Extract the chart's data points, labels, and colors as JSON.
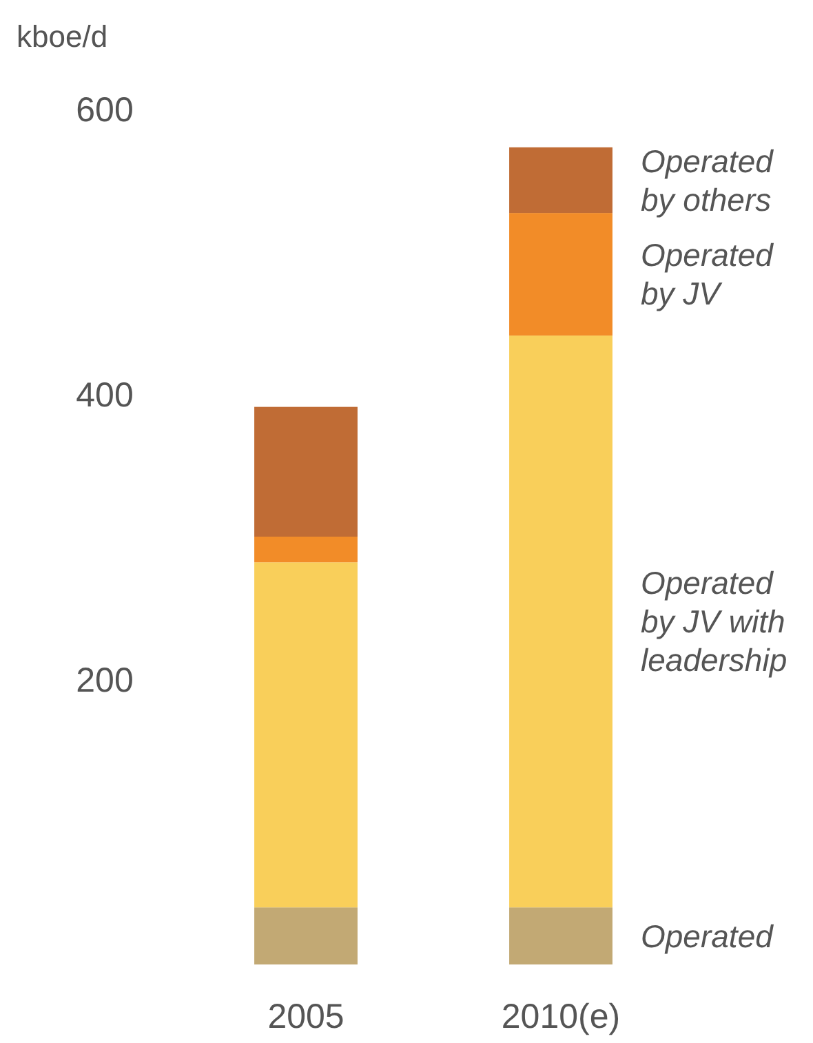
{
  "chart_data": {
    "type": "bar",
    "stacked": true,
    "ylabel": "kboe/d",
    "categories": [
      "2005",
      "2010(e)"
    ],
    "ylim": [
      0,
      600
    ],
    "yticks": [
      200,
      400,
      600
    ],
    "series": [
      {
        "name": "Operated",
        "color": "#c2a974",
        "values": [
          40,
          40
        ]
      },
      {
        "name": "Operated by JV with leadership",
        "color": "#f9cf5a",
        "values": [
          242,
          401
        ]
      },
      {
        "name": "Operated by JV",
        "color": "#f28c28",
        "values": [
          18,
          86
        ]
      },
      {
        "name": "Operated by others",
        "color": "#c06c35",
        "values": [
          91,
          46
        ]
      }
    ]
  }
}
